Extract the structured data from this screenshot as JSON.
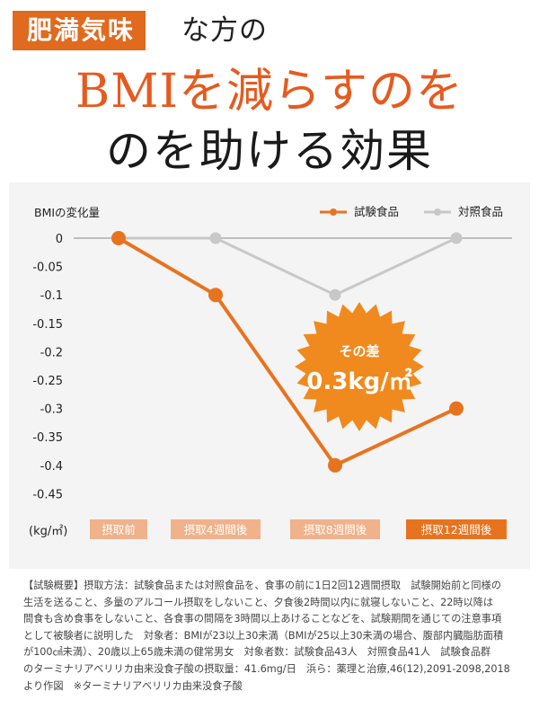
{
  "header": {
    "tag": "肥満気味",
    "rest": "な方の",
    "line2": "BMIを減らすのを",
    "line3": "のを助ける効果"
  },
  "colors": {
    "accent": "#e8731f",
    "control": "#c8c8c8",
    "label_bg": "#f0b28a",
    "label_bg_active": "#e8731f",
    "burst": "#f08a1e"
  },
  "callout": {
    "line1": "その差",
    "line2": "0.3kg/㎡"
  },
  "chart_data": {
    "type": "line",
    "ylabel": "BMIの変化量",
    "unit_label": "(kg/㎡)",
    "categories": [
      "摂取前",
      "摂取4週間後",
      "摂取8週間後",
      "摂取12週間後"
    ],
    "series": [
      {
        "name": "試験食品",
        "values": [
          0,
          -0.1,
          -0.4,
          -0.3
        ],
        "color": "#e8731f"
      },
      {
        "name": "対照食品",
        "values": [
          0,
          0,
          -0.1,
          0
        ],
        "color": "#c8c8c8"
      }
    ],
    "yticks": [
      "0",
      "-0.05",
      "-0.1",
      "-0.15",
      "-0.2",
      "-0.25",
      "-0.3",
      "-0.35",
      "-0.4",
      "-0.45"
    ],
    "ylim": [
      -0.45,
      0
    ],
    "grid": false,
    "legend": "top-right"
  },
  "notes": [
    "【試験概要】摂取方法：試験食品または対照食品を、食事の前に1日2回12週間摂取　試験開始前と同様の",
    "生活を送ること、多量のアルコール摂取をしないこと、夕食後2時間以内に就寝しないこと、22時以降は",
    "間食も含め食事をしないこと、各食事の間隔を3時間以上あけることなどを、試験期間を通じての注意事項",
    "として被験者に説明した　対象者：BMIが23以上30未満（BMIが25以上30未満の場合、腹部内臓脂肪面積",
    "が100㎠未満）、20歳以上65歳未満の健常男女　対象者数：試験食品43人　対照食品41人　試験食品群",
    "のターミナリアベリリカ由来没食子酸の摂取量：41.6mg/日　浜ら：薬理と治療,46(12),2091-2098,2018",
    "より作図　※ターミナリアベリリカ由来没食子酸"
  ]
}
